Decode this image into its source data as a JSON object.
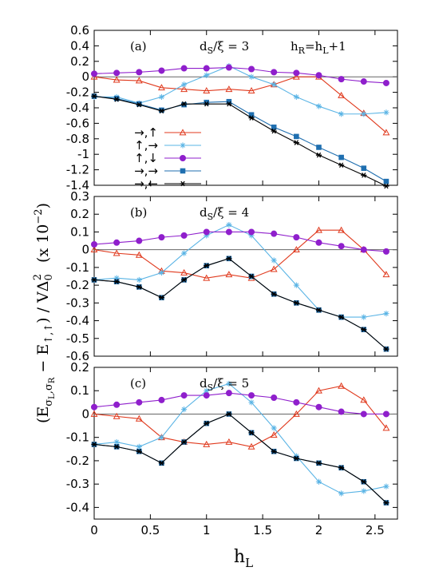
{
  "figure": {
    "ylabel_parts": {
      "open": "(E",
      "sub1": "σ",
      "sub1_l": "L",
      "sub1_sep": ",σ",
      "sub1_r": "R",
      "minus": " − E",
      "sub2": "↑,↑",
      "rest": ") / VΔ",
      "sub0": "0",
      "sup2": "2",
      "scale": "(x 10",
      "scale_exp": "−2",
      "scale_close": ")"
    },
    "xlabel_main": "h",
    "xlabel_sub": "L"
  },
  "chart_data": [
    {
      "type": "line",
      "panel_label": "(a)",
      "param": {
        "main": "d",
        "sub": "S",
        "rest": "/ξ = 3"
      },
      "extra": {
        "a": "h",
        "a_sub": "R",
        "b": "=h",
        "b_sub": "L",
        "c": "+1"
      },
      "xlim": [
        0,
        2.7
      ],
      "ylim": [
        -1.4,
        0.6
      ],
      "yticks": [
        -1.4,
        -1.2,
        -1.0,
        -0.8,
        -0.6,
        -0.4,
        -0.2,
        0,
        0.2,
        0.4,
        0.6
      ],
      "ytick_labels": [
        "-1.4",
        "-1.2",
        "-1",
        "-0.8",
        "-0.6",
        "-0.4",
        "-0.2",
        "0",
        "0.2",
        "0.4",
        "0.6"
      ],
      "xticks": [
        0,
        0.5,
        1,
        1.5,
        2,
        2.5
      ],
      "legend": [
        {
          "label": "→,↑",
          "series": 0
        },
        {
          "label": "↑,→",
          "series": 1
        },
        {
          "label": "↑,↓",
          "series": 2
        },
        {
          "label": "→,→",
          "series": 3
        },
        {
          "label": "→,←",
          "series": 4
        }
      ],
      "x": [
        0,
        0.2,
        0.4,
        0.6,
        0.8,
        1.0,
        1.2,
        1.4,
        1.6,
        1.8,
        2.0,
        2.2,
        2.4,
        2.6
      ],
      "series": [
        {
          "marker": "triangle",
          "color": "#e03a1e",
          "values": [
            0.0,
            -0.04,
            -0.05,
            -0.14,
            -0.16,
            -0.18,
            -0.16,
            -0.18,
            -0.1,
            0.0,
            0.0,
            -0.24,
            -0.47,
            -0.72
          ]
        },
        {
          "marker": "star",
          "color": "#5ab4e5",
          "values": [
            -0.26,
            -0.26,
            -0.34,
            -0.26,
            -0.1,
            0.02,
            0.14,
            0.0,
            -0.1,
            -0.26,
            -0.38,
            -0.48,
            -0.48,
            -0.46
          ]
        },
        {
          "marker": "circle",
          "color": "#8f1fcc",
          "values": [
            0.04,
            0.05,
            0.06,
            0.08,
            0.11,
            0.11,
            0.12,
            0.1,
            0.06,
            0.05,
            0.02,
            -0.03,
            -0.06,
            -0.08
          ]
        },
        {
          "marker": "square",
          "color": "#1f6fb0",
          "values": [
            -0.25,
            -0.28,
            -0.35,
            -0.43,
            -0.36,
            -0.33,
            -0.32,
            -0.49,
            -0.65,
            -0.77,
            -0.91,
            -1.04,
            -1.18,
            -1.35
          ]
        },
        {
          "marker": "asterisk",
          "color": "#000000",
          "values": [
            -0.25,
            -0.29,
            -0.36,
            -0.44,
            -0.35,
            -0.35,
            -0.35,
            -0.53,
            -0.7,
            -0.85,
            -1.01,
            -1.14,
            -1.27,
            -1.41
          ]
        }
      ]
    },
    {
      "type": "line",
      "panel_label": "(b)",
      "param": {
        "main": "d",
        "sub": "S",
        "rest": "/ξ = 4"
      },
      "xlim": [
        0,
        2.7
      ],
      "ylim": [
        -0.6,
        0.3
      ],
      "yticks": [
        -0.6,
        -0.5,
        -0.4,
        -0.3,
        -0.2,
        -0.1,
        0,
        0.1,
        0.2,
        0.3
      ],
      "ytick_labels": [
        "-0.6",
        "-0.5",
        "-0.4",
        "-0.3",
        "-0.2",
        "-0.1",
        "0",
        "0.1",
        "0.2",
        "0.3"
      ],
      "xticks": [
        0,
        0.5,
        1,
        1.5,
        2,
        2.5
      ],
      "x": [
        0,
        0.2,
        0.4,
        0.6,
        0.8,
        1.0,
        1.2,
        1.4,
        1.6,
        1.8,
        2.0,
        2.2,
        2.4,
        2.6
      ],
      "series": [
        {
          "marker": "triangle",
          "color": "#e03a1e",
          "values": [
            0.0,
            -0.02,
            -0.03,
            -0.12,
            -0.13,
            -0.16,
            -0.14,
            -0.16,
            -0.11,
            0.0,
            0.11,
            0.11,
            0.0,
            -0.14
          ]
        },
        {
          "marker": "star",
          "color": "#5ab4e5",
          "values": [
            -0.17,
            -0.16,
            -0.17,
            -0.13,
            -0.02,
            0.08,
            0.14,
            0.08,
            -0.06,
            -0.2,
            -0.34,
            -0.38,
            -0.38,
            -0.36
          ]
        },
        {
          "marker": "circle",
          "color": "#8f1fcc",
          "values": [
            0.03,
            0.04,
            0.05,
            0.07,
            0.08,
            0.1,
            0.1,
            0.1,
            0.09,
            0.07,
            0.04,
            0.02,
            0.0,
            -0.01
          ]
        },
        {
          "marker": "square",
          "color": "#1f6fb0",
          "values": [
            -0.17,
            -0.18,
            -0.21,
            -0.27,
            -0.17,
            -0.09,
            -0.05,
            -0.15,
            -0.25,
            -0.3,
            -0.34,
            -0.38,
            -0.45,
            -0.56
          ]
        },
        {
          "marker": "asterisk",
          "color": "#000000",
          "values": [
            -0.17,
            -0.18,
            -0.21,
            -0.27,
            -0.17,
            -0.09,
            -0.05,
            -0.15,
            -0.25,
            -0.3,
            -0.34,
            -0.38,
            -0.45,
            -0.56
          ]
        }
      ]
    },
    {
      "type": "line",
      "panel_label": "(c)",
      "param": {
        "main": "d",
        "sub": "S",
        "rest": "/ξ = 5"
      },
      "xlim": [
        0,
        2.7
      ],
      "ylim": [
        -0.45,
        0.2
      ],
      "yticks": [
        -0.4,
        -0.3,
        -0.2,
        -0.1,
        0,
        0.1,
        0.2
      ],
      "ytick_labels": [
        "-0.4",
        "-0.3",
        "-0.2",
        "-0.1",
        "0",
        "0.1",
        "0.2"
      ],
      "xticks": [
        0,
        0.5,
        1,
        1.5,
        2,
        2.5
      ],
      "xtick_labels": [
        "0",
        "0.5",
        "1",
        "1.5",
        "2",
        "2.5"
      ],
      "x": [
        0,
        0.2,
        0.4,
        0.6,
        0.8,
        1.0,
        1.2,
        1.4,
        1.6,
        1.8,
        2.0,
        2.2,
        2.4,
        2.6
      ],
      "series": [
        {
          "marker": "triangle",
          "color": "#e03a1e",
          "values": [
            0.0,
            -0.01,
            -0.02,
            -0.1,
            -0.12,
            -0.13,
            -0.12,
            -0.14,
            -0.09,
            0.0,
            0.1,
            0.12,
            0.06,
            -0.06
          ]
        },
        {
          "marker": "star",
          "color": "#5ab4e5",
          "values": [
            -0.13,
            -0.12,
            -0.14,
            -0.1,
            0.02,
            0.1,
            0.13,
            0.05,
            -0.06,
            -0.18,
            -0.29,
            -0.34,
            -0.33,
            -0.31
          ]
        },
        {
          "marker": "circle",
          "color": "#8f1fcc",
          "values": [
            0.03,
            0.04,
            0.05,
            0.06,
            0.08,
            0.08,
            0.09,
            0.08,
            0.07,
            0.05,
            0.03,
            0.01,
            0.0,
            0.0
          ]
        },
        {
          "marker": "square",
          "color": "#1f6fb0",
          "values": [
            -0.13,
            -0.14,
            -0.16,
            -0.21,
            -0.12,
            -0.04,
            0.0,
            -0.08,
            -0.16,
            -0.19,
            -0.21,
            -0.23,
            -0.29,
            -0.38
          ]
        },
        {
          "marker": "asterisk",
          "color": "#000000",
          "values": [
            -0.13,
            -0.14,
            -0.16,
            -0.21,
            -0.12,
            -0.04,
            0.0,
            -0.08,
            -0.16,
            -0.19,
            -0.21,
            -0.23,
            -0.29,
            -0.38
          ]
        }
      ]
    }
  ]
}
